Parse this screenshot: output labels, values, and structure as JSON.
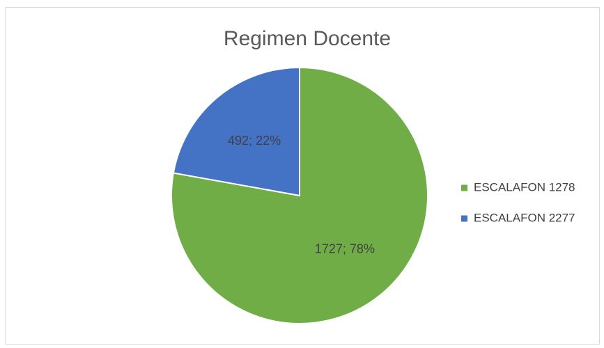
{
  "chart_data": {
    "type": "pie",
    "title": "Regimen Docente",
    "categories": [
      "ESCALAFON 1278",
      "ESCALAFON 2277"
    ],
    "values": [
      1727,
      492
    ],
    "value_labels": [
      "1727; 78%",
      "492; 22%"
    ],
    "colors": [
      "#70ad47",
      "#4472c4"
    ],
    "legend": "right"
  }
}
